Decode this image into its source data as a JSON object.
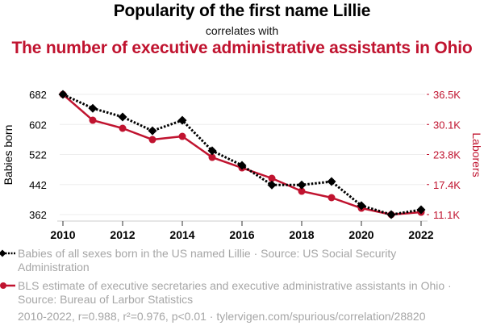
{
  "header": {
    "title": "Popularity of the first name Lillie",
    "subtitle": "correlates with",
    "title2": "The number of executive administrative assistants in Ohio"
  },
  "legend": {
    "series1": "Babies of all sexes born in the US named Lillie · Source: US Social Security Administration",
    "series2": "BLS estimate of executive secretaries and executive administrative assistants in Ohio · Source: Bureau of Larbor Statistics"
  },
  "footer": "2010-2022, r=0.988, r²=0.976, p<0.01 · tylervigen.com/spurious/correlation/28820",
  "colors": {
    "series1": "#000000",
    "series2": "#c0132f",
    "grid": "#eeeeee",
    "legend_text": "#a6a6a6"
  },
  "chart_data": {
    "type": "line",
    "title": "Popularity of the first name Lillie correlates with The number of executive administrative assistants in Ohio",
    "x": [
      2010,
      2011,
      2012,
      2013,
      2014,
      2015,
      2016,
      2017,
      2018,
      2019,
      2020,
      2021,
      2022
    ],
    "x_ticks": [
      "2010",
      "2012",
      "2014",
      "2016",
      "2018",
      "2020",
      "2022"
    ],
    "xlim": [
      2010,
      2022
    ],
    "ylabel_left": "Babies born",
    "ylabel_right": "Laborers",
    "y_left_ticks": [
      "682",
      "602",
      "522",
      "442",
      "362"
    ],
    "y_left_tick_values": [
      682,
      602,
      522,
      442,
      362
    ],
    "ylim_left": [
      362,
      682
    ],
    "y_right_ticks": [
      "36.5K",
      "30.1K",
      "23.8K",
      "17.4K",
      "11.1K"
    ],
    "y_right_tick_values": [
      36500,
      30150,
      23800,
      17450,
      11100
    ],
    "ylim_right": [
      11100,
      36500
    ],
    "grid": true,
    "legend_position": "bottom",
    "series": [
      {
        "name": "Babies of all sexes born in the US named Lillie",
        "axis": "left",
        "style": "dotted",
        "marker": "diamond",
        "values": [
          682,
          645,
          622,
          585,
          613,
          532,
          493,
          441,
          441,
          450,
          386,
          362,
          375
        ]
      },
      {
        "name": "BLS estimate of executive secretaries and executive administrative assistants in Ohio",
        "axis": "right",
        "style": "solid",
        "marker": "circle",
        "values": [
          36500,
          31040,
          29340,
          26950,
          27630,
          23200,
          20980,
          18770,
          16040,
          14680,
          12460,
          11100,
          11610
        ]
      }
    ]
  }
}
